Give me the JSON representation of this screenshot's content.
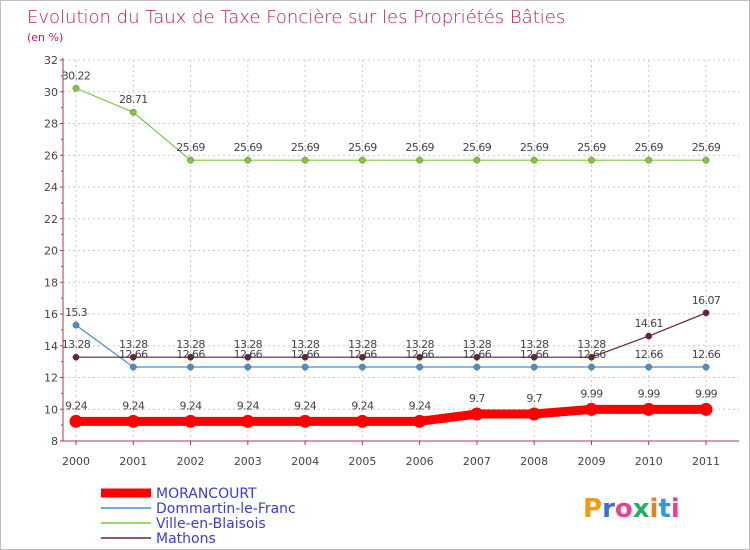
{
  "chart_data": {
    "type": "line",
    "title": "Evolution du Taux de Taxe Foncière sur les Propriétés Bâties",
    "unit_label": "(en %)",
    "x": [
      "2000",
      "2001",
      "2002",
      "2003",
      "2004",
      "2005",
      "2006",
      "2007",
      "2008",
      "2009",
      "2010",
      "2011"
    ],
    "ylim": [
      8,
      32
    ],
    "y_ticks": [
      8,
      10,
      12,
      14,
      16,
      18,
      20,
      22,
      24,
      26,
      28,
      30,
      32
    ],
    "grid": true,
    "series": [
      {
        "name": "Ville-en-Blaisois",
        "color": "#7dc83c",
        "values": [
          30.22,
          28.71,
          25.69,
          25.69,
          25.69,
          25.69,
          25.69,
          25.69,
          25.69,
          25.69,
          25.69,
          25.69
        ],
        "labels": [
          "30.22",
          "28.71",
          "25.69",
          "25.69",
          "25.69",
          "25.69",
          "25.69",
          "25.69",
          "25.69",
          "25.69",
          "25.69",
          "25.69"
        ]
      },
      {
        "name": "Dommartin-le-Franc",
        "color": "#4a8fc8",
        "values": [
          15.3,
          12.66,
          12.66,
          12.66,
          12.66,
          12.66,
          12.66,
          12.66,
          12.66,
          12.66,
          12.66,
          12.66
        ],
        "labels": [
          "15.3",
          "12.66",
          "12.66",
          "12.66",
          "12.66",
          "12.66",
          "12.66",
          "12.66",
          "12.66",
          "12.66",
          "12.66",
          "12.66"
        ]
      },
      {
        "name": "Mathons",
        "color": "#6b2030",
        "values": [
          13.28,
          13.28,
          13.28,
          13.28,
          13.28,
          13.28,
          13.28,
          13.28,
          13.28,
          13.28,
          14.61,
          16.07
        ],
        "labels": [
          "13.28",
          "13.28",
          "13.28",
          "13.28",
          "13.28",
          "13.28",
          "13.28",
          "13.28",
          "13.28",
          "13.28",
          "14.61",
          "16.07"
        ]
      },
      {
        "name": "MORANCOURT",
        "color": "#ff0000",
        "values": [
          9.24,
          9.24,
          9.24,
          9.24,
          9.24,
          9.24,
          9.24,
          9.7,
          9.7,
          9.99,
          9.99,
          9.99
        ],
        "labels": [
          "9.24",
          "9.24",
          "9.24",
          "9.24",
          "9.24",
          "9.24",
          "9.24",
          "9.7",
          "9.7",
          "9.99",
          "9.99",
          "9.99"
        ]
      }
    ],
    "legend": [
      "MORANCOURT",
      "Dommartin-le-Franc",
      "Ville-en-Blaisois",
      "Mathons"
    ],
    "legend_position": "bottom-left",
    "logo_text": "Proxiti"
  }
}
